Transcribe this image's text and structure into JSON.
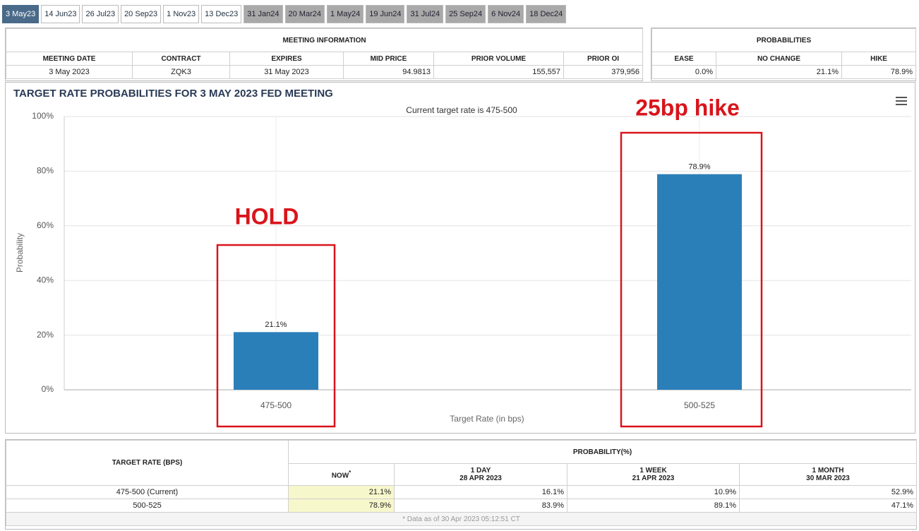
{
  "tabs": [
    {
      "label": "3 May23",
      "state": "active"
    },
    {
      "label": "14 Jun23",
      "state": "open"
    },
    {
      "label": "26 Jul23",
      "state": "open"
    },
    {
      "label": "20 Sep23",
      "state": "open"
    },
    {
      "label": "1 Nov23",
      "state": "open"
    },
    {
      "label": "13 Dec23",
      "state": "open"
    },
    {
      "label": "31 Jan24",
      "state": "muted"
    },
    {
      "label": "20 Mar24",
      "state": "muted"
    },
    {
      "label": "1 May24",
      "state": "muted"
    },
    {
      "label": "19 Jun24",
      "state": "muted"
    },
    {
      "label": "31 Jul24",
      "state": "muted"
    },
    {
      "label": "25 Sep24",
      "state": "muted"
    },
    {
      "label": "6 Nov24",
      "state": "muted"
    },
    {
      "label": "18 Dec24",
      "state": "muted"
    }
  ],
  "meeting_info": {
    "title": "MEETING INFORMATION",
    "columns": [
      "MEETING DATE",
      "CONTRACT",
      "EXPIRES",
      "MID PRICE",
      "PRIOR VOLUME",
      "PRIOR OI"
    ],
    "row": [
      "3 May 2023",
      "ZQK3",
      "31 May 2023",
      "94.9813",
      "155,557",
      "379,956"
    ]
  },
  "probabilities": {
    "title": "PROBABILITIES",
    "columns": [
      "EASE",
      "NO CHANGE",
      "HIKE"
    ],
    "row": [
      "0.0%",
      "21.1%",
      "78.9%"
    ]
  },
  "chart_data": {
    "type": "bar",
    "title": "TARGET RATE PROBABILITIES FOR 3 MAY 2023 FED MEETING",
    "subtitle": "Current target rate is 475-500",
    "x_label": "Target Rate (in bps)",
    "y_label": "Probability",
    "categories": [
      "475-500",
      "500-525"
    ],
    "values": [
      21.1,
      78.9
    ],
    "value_labels": [
      "21.1%",
      "78.9%"
    ],
    "annotations": [
      "HOLD",
      "25bp hike"
    ],
    "color": "#2b7fb9",
    "ylim": [
      0,
      100
    ],
    "yticks": [
      {
        "value": 0,
        "label": "0%"
      },
      {
        "value": 20,
        "label": "20%"
      },
      {
        "value": 40,
        "label": "40%"
      },
      {
        "value": 60,
        "label": "60%"
      },
      {
        "value": 80,
        "label": "80%"
      },
      {
        "value": 100,
        "label": "100%"
      }
    ],
    "grid": true
  },
  "history": {
    "first_header": "TARGET RATE (BPS)",
    "group_header": "PROBABILITY(%)",
    "columns": [
      {
        "label": "NOW",
        "note": "*"
      },
      {
        "label": "1 DAY",
        "date": "28 APR 2023"
      },
      {
        "label": "1 WEEK",
        "date": "21 APR 2023"
      },
      {
        "label": "1 MONTH",
        "date": "30 MAR 2023"
      }
    ],
    "rows": [
      [
        "475-500 (Current)",
        "21.1%",
        "16.1%",
        "10.9%",
        "52.9%"
      ],
      [
        "500-525",
        "78.9%",
        "83.9%",
        "89.1%",
        "47.1%"
      ]
    ],
    "footnote": "* Data as of 30 Apr 2023 05:12:51 CT"
  }
}
